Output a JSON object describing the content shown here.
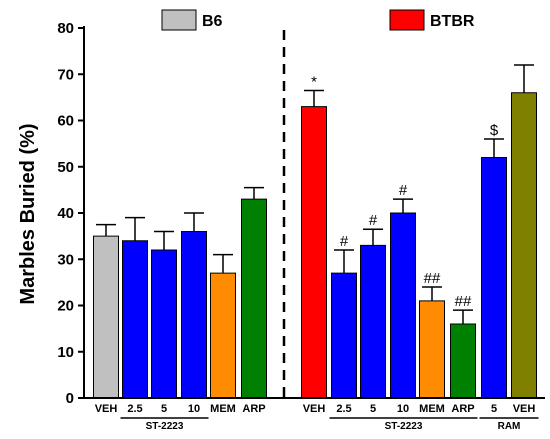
{
  "chart_data": {
    "type": "bar",
    "ylabel": "Marbles Buried (%)",
    "ylim": [
      0,
      80
    ],
    "yticks": [
      0,
      10,
      20,
      30,
      40,
      50,
      60,
      70,
      80
    ],
    "legend": [
      {
        "label": "B6",
        "color": "#c0c0c0"
      },
      {
        "label": "BTBR",
        "color": "#ff0000"
      }
    ],
    "bars": [
      {
        "group": "B6",
        "label": "VEH",
        "value": 35,
        "error": 2.5,
        "color": "#c0c0c0",
        "annotation": ""
      },
      {
        "group": "B6",
        "label": "2.5",
        "value": 34,
        "error": 5,
        "color": "#0000ff",
        "annotation": ""
      },
      {
        "group": "B6",
        "label": "5",
        "value": 32,
        "error": 4,
        "color": "#0000ff",
        "annotation": ""
      },
      {
        "group": "B6",
        "label": "10",
        "value": 36,
        "error": 4,
        "color": "#0000ff",
        "annotation": ""
      },
      {
        "group": "B6",
        "label": "MEM",
        "value": 27,
        "error": 4,
        "color": "#ff8c00",
        "annotation": ""
      },
      {
        "group": "B6",
        "label": "ARP",
        "value": 43,
        "error": 2.5,
        "color": "#008000",
        "annotation": ""
      },
      {
        "group": "BTBR",
        "label": "VEH",
        "value": 63,
        "error": 3.5,
        "color": "#ff0000",
        "annotation": "*"
      },
      {
        "group": "BTBR",
        "label": "2.5",
        "value": 27,
        "error": 5,
        "color": "#0000ff",
        "annotation": "#"
      },
      {
        "group": "BTBR",
        "label": "5",
        "value": 33,
        "error": 3.5,
        "color": "#0000ff",
        "annotation": "#"
      },
      {
        "group": "BTBR",
        "label": "10",
        "value": 40,
        "error": 3,
        "color": "#0000ff",
        "annotation": "#"
      },
      {
        "group": "BTBR",
        "label": "MEM",
        "value": 21,
        "error": 3,
        "color": "#ff8c00",
        "annotation": "##"
      },
      {
        "group": "BTBR",
        "label": "ARP",
        "value": 16,
        "error": 3,
        "color": "#008000",
        "annotation": "##"
      },
      {
        "group": "BTBR",
        "label": "5",
        "value": 52,
        "error": 4,
        "color": "#0000ff",
        "annotation": "$"
      },
      {
        "group": "BTBR",
        "label": "VEH",
        "value": 66,
        "error": 6,
        "color": "#808000",
        "annotation": ""
      }
    ],
    "subgroups": [
      {
        "label": "ST-2223",
        "from": 1,
        "to": 3
      },
      {
        "label": "ST-2223",
        "from": 7,
        "to": 11
      },
      {
        "label": "RAM",
        "from": 12,
        "to": 13
      }
    ]
  }
}
